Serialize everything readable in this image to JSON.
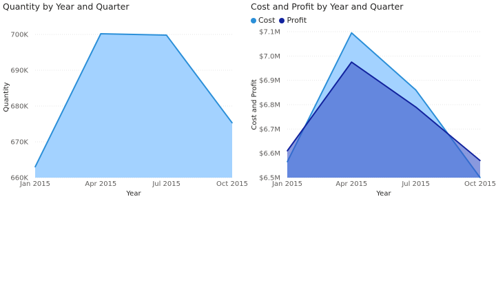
{
  "chart_data": [
    {
      "type": "area",
      "title": "Quantity by Year and Quarter",
      "xlabel": "Year",
      "ylabel": "Quantity",
      "categories": [
        "Jan 2015",
        "Apr 2015",
        "Jul 2015",
        "Oct 2015"
      ],
      "ylim": [
        660000,
        705000
      ],
      "yticks": [
        660000,
        670000,
        680000,
        690000,
        700000
      ],
      "ytick_labels": [
        "660K",
        "670K",
        "680K",
        "690K",
        "700K"
      ],
      "grid": true,
      "series": [
        {
          "values": [
            663000,
            700200,
            699800,
            675300
          ],
          "line_color": "#2b8fd8",
          "fill_color": "#a3d2ff"
        }
      ]
    },
    {
      "type": "area",
      "title": "Cost and Profit by Year and Quarter",
      "xlabel": "Year",
      "ylabel": "Cost and Profit",
      "categories": [
        "Jan 2015",
        "Apr 2015",
        "Jul 2015",
        "Oct 2015"
      ],
      "ylim": [
        6500000,
        7100000
      ],
      "yticks": [
        6500000,
        6600000,
        6700000,
        6800000,
        6900000,
        7000000,
        7100000
      ],
      "ytick_labels": [
        "$6.5M",
        "$6.6M",
        "$6.7M",
        "$6.8M",
        "$6.9M",
        "$7.0M",
        "$7.1M"
      ],
      "grid": true,
      "legend_position": "top-left",
      "series": [
        {
          "name": "Cost",
          "values": [
            6565000,
            7095000,
            6860000,
            6495000
          ],
          "line_color": "#2b8fd8",
          "fill_color": "#a3d2ff",
          "fill_opacity": 1
        },
        {
          "name": "Profit",
          "values": [
            6610000,
            6975000,
            6790000,
            6570000
          ],
          "line_color": "#12239e",
          "fill_color": "#3a55c8",
          "fill_opacity": 0.6
        }
      ]
    }
  ]
}
